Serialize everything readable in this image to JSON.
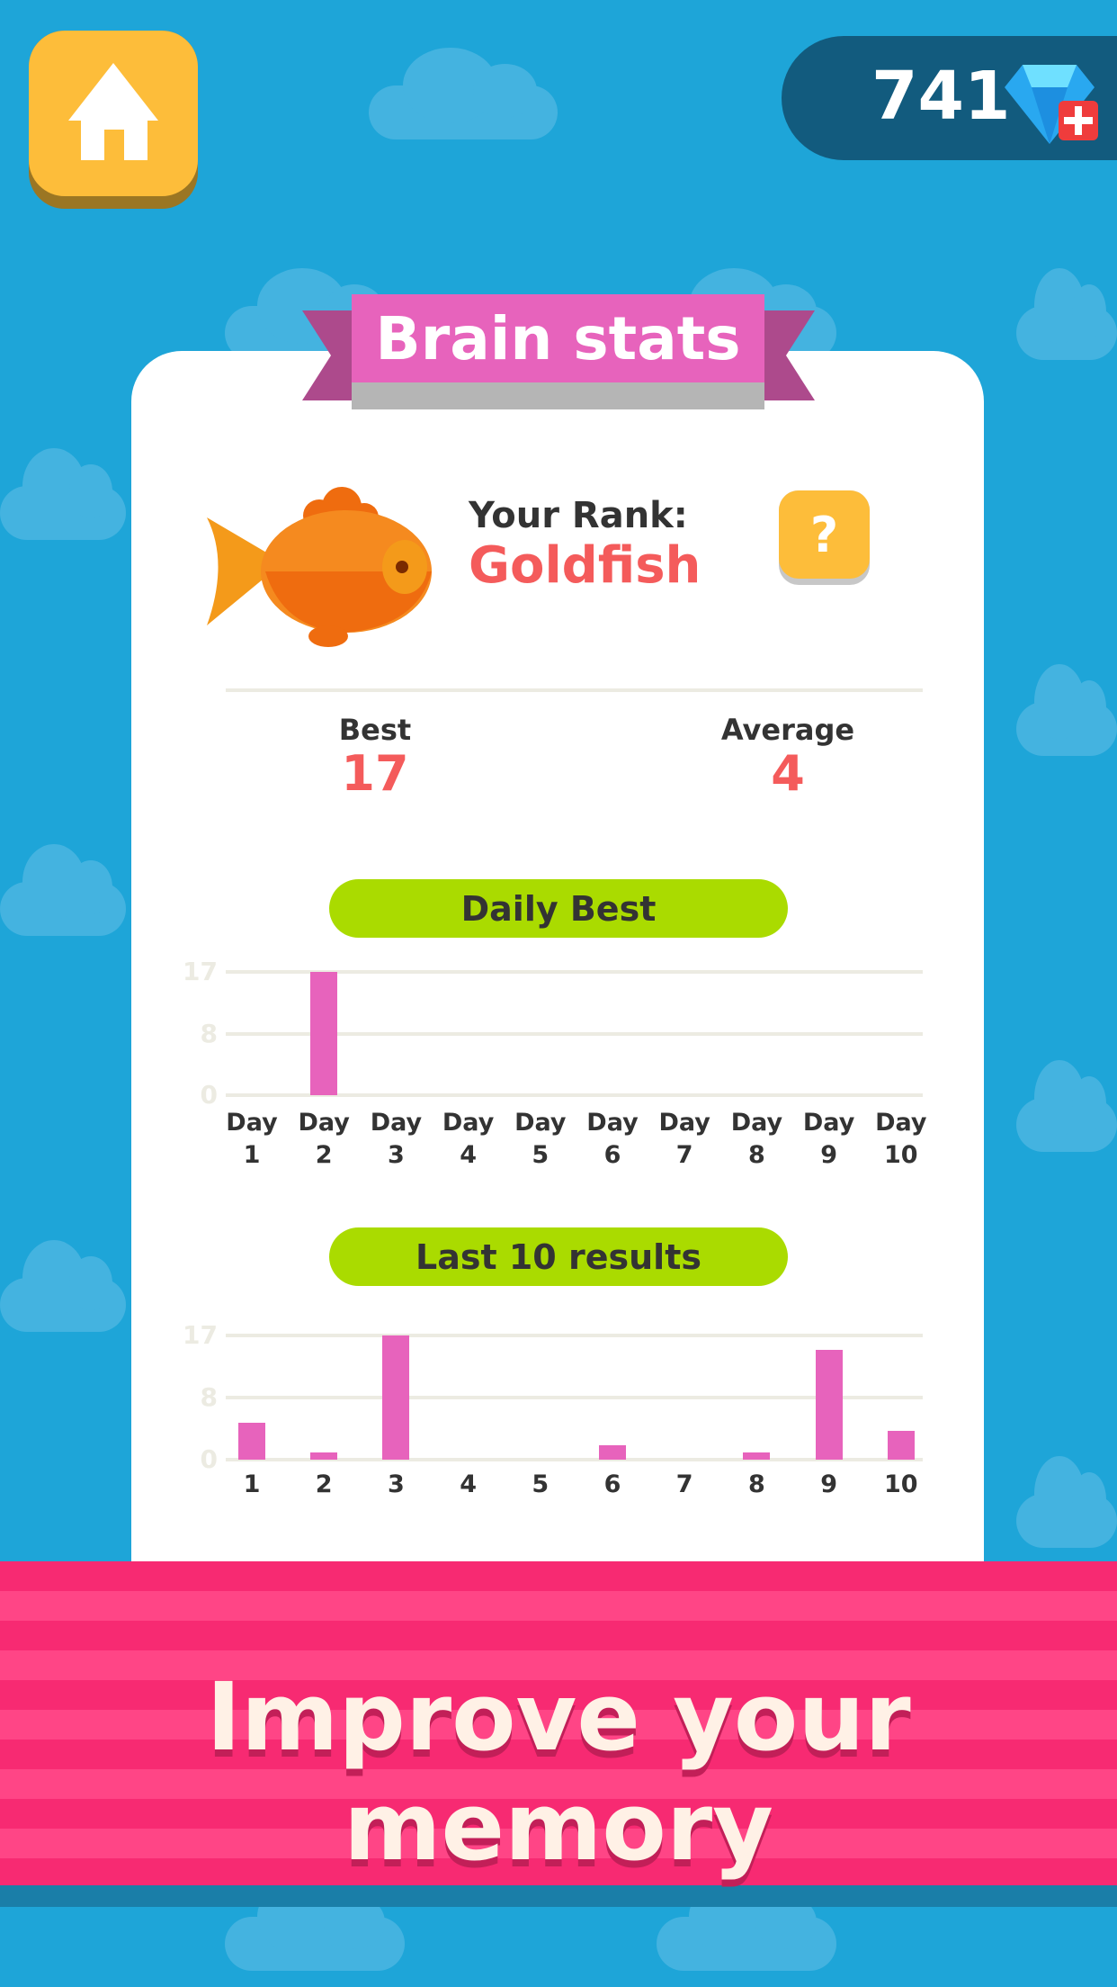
{
  "header": {
    "home_icon": "home-icon",
    "gems": "741",
    "gem_icon": "diamond-icon",
    "add_icon": "plus-icon"
  },
  "card": {
    "title": "Brain stats",
    "rank_label": "Your Rank:",
    "rank": "Goldfish",
    "help": "?",
    "best_label": "Best",
    "best": "17",
    "average_label": "Average",
    "average": "4"
  },
  "colors": {
    "accent": "#e763bc",
    "rank": "#f45b5b",
    "pill": "#aadb00",
    "banner": "#f72a72"
  },
  "chart_data": [
    {
      "type": "bar",
      "title": "Daily Best",
      "categories": [
        [
          "Day",
          "1"
        ],
        [
          "Day",
          "2"
        ],
        [
          "Day",
          "3"
        ],
        [
          "Day",
          "4"
        ],
        [
          "Day",
          "5"
        ],
        [
          "Day",
          "6"
        ],
        [
          "Day",
          "7"
        ],
        [
          "Day",
          "8"
        ],
        [
          "Day",
          "9"
        ],
        [
          "Day",
          "10"
        ]
      ],
      "values": [
        0,
        17,
        0,
        0,
        0,
        0,
        0,
        0,
        0,
        0
      ],
      "yticks": [
        "17",
        "8",
        "0"
      ],
      "ylim": [
        0,
        17
      ],
      "grid": true
    },
    {
      "type": "bar",
      "title": "Last 10 results",
      "categories": [
        [
          "1"
        ],
        [
          "2"
        ],
        [
          "3"
        ],
        [
          "4"
        ],
        [
          "5"
        ],
        [
          "6"
        ],
        [
          "7"
        ],
        [
          "8"
        ],
        [
          "9"
        ],
        [
          "10"
        ]
      ],
      "values": [
        5,
        1,
        17,
        0,
        0,
        2,
        0,
        1,
        15,
        4
      ],
      "yticks": [
        "17",
        "8",
        "0"
      ],
      "ylim": [
        0,
        17
      ],
      "grid": true
    }
  ],
  "banner": {
    "text": "Improve your memory"
  }
}
